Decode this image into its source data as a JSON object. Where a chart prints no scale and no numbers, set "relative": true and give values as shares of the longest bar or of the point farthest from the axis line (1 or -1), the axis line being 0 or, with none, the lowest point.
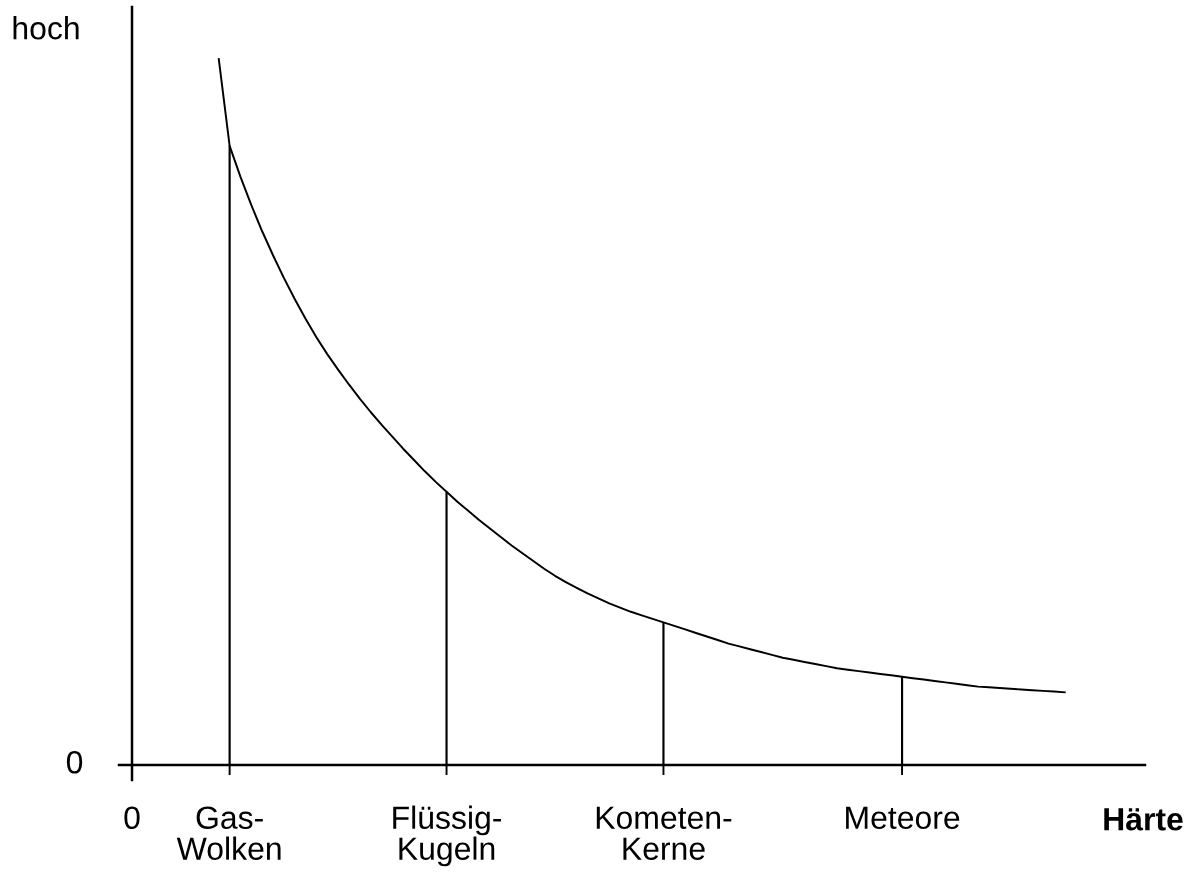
{
  "chart_data": {
    "type": "line",
    "relative": true,
    "xlabel": "Härte",
    "ylabel": "hoch",
    "annotations": [
      "0"
    ],
    "categories": [
      "0",
      null,
      null,
      null,
      null,
      null,
      null,
      null,
      null,
      "Gas-\nWolken",
      null,
      null,
      null,
      null,
      null,
      null,
      null,
      null,
      null,
      null,
      null,
      null,
      null,
      null,
      null,
      null,
      null,
      null,
      null,
      "Flüssig-\nKugeln",
      null,
      null,
      null,
      null,
      null,
      null,
      null,
      null,
      null,
      null,
      null,
      null,
      null,
      null,
      null,
      null,
      null,
      null,
      null,
      "Kometen-\nKerne",
      null,
      null,
      null,
      null,
      null,
      null,
      null,
      null,
      null,
      null,
      null,
      null,
      null,
      null,
      null,
      null,
      null,
      null,
      null,
      null,
      null,
      "Meteore",
      null,
      null,
      null,
      null,
      null,
      null,
      null,
      null,
      null,
      null,
      null,
      null,
      null,
      null,
      null
    ],
    "series": [
      {
        "color": "#000000",
        "values": [
          null,
          null,
          null,
          null,
          null,
          null,
          null,
          null,
          1,
          0.877,
          0.833,
          0.793,
          0.756,
          0.722,
          0.69,
          0.66,
          0.632,
          0.606,
          0.582,
          0.56,
          0.539,
          0.519,
          0.5,
          0.482,
          0.465,
          0.448,
          0.432,
          0.416,
          0.401,
          0.387,
          0.373,
          0.36,
          0.347,
          0.335,
          0.323,
          0.311,
          0.3,
          0.289,
          0.278,
          0.268,
          0.259,
          0.251,
          0.243,
          0.236,
          0.229,
          0.223,
          0.217,
          0.212,
          0.207,
          0.202,
          0.197,
          0.192,
          0.187,
          0.182,
          0.177,
          0.172,
          0.168,
          0.164,
          0.16,
          0.156,
          0.152,
          0.149,
          0.146,
          0.143,
          0.14,
          0.137,
          0.135,
          0.133,
          0.131,
          0.129,
          0.127,
          0.125,
          0.123,
          0.121,
          0.119,
          0.117,
          0.115,
          0.113,
          0.111,
          0.11,
          0.109,
          0.108,
          0.107,
          0.106,
          0.105,
          0.104,
          0.103
        ]
      },
      {
        "type": "bar",
        "color": "#000000",
        "values": [
          null,
          null,
          null,
          null,
          null,
          null,
          null,
          null,
          null,
          0.877,
          null,
          null,
          null,
          null,
          null,
          null,
          null,
          null,
          null,
          null,
          null,
          null,
          null,
          null,
          null,
          null,
          null,
          null,
          null,
          0.387,
          null,
          null,
          null,
          null,
          null,
          null,
          null,
          null,
          null,
          null,
          null,
          null,
          null,
          null,
          null,
          null,
          null,
          null,
          null,
          0.202,
          null,
          null,
          null,
          null,
          null,
          null,
          null,
          null,
          null,
          null,
          null,
          null,
          null,
          null,
          null,
          null,
          null,
          null,
          null,
          null,
          null,
          0.125,
          null,
          null,
          null,
          null,
          null,
          null,
          null,
          null,
          null,
          null,
          null,
          null,
          null,
          null,
          null
        ]
      }
    ]
  }
}
